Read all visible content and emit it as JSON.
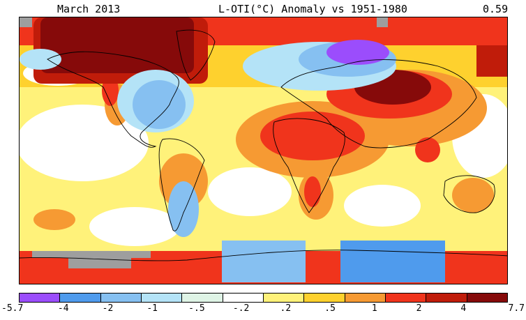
{
  "header": {
    "date_label": "March 2013",
    "title": "L-OTI(°C) Anomaly vs 1951-1980",
    "global_mean": "0.59"
  },
  "legend": {
    "bins": [
      {
        "color": "#9b4dfc"
      },
      {
        "color": "#4f9bed"
      },
      {
        "color": "#86c0f1"
      },
      {
        "color": "#b4e3f7"
      },
      {
        "color": "#dff4e6"
      },
      {
        "color": "#ffffff"
      },
      {
        "color": "#fff27a"
      },
      {
        "color": "#fed12e"
      },
      {
        "color": "#f69a33"
      },
      {
        "color": "#f0341c"
      },
      {
        "color": "#c01c0a"
      },
      {
        "color": "#860a0a"
      }
    ],
    "ticks": [
      "-5.7",
      "-4",
      "-2",
      "-1",
      "-.5",
      "-.2",
      ".2",
      ".5",
      "1",
      "2",
      "4",
      "7.7"
    ]
  },
  "colors": {
    "coastline": "#000000",
    "missing_data": "#9e9e9e"
  }
}
